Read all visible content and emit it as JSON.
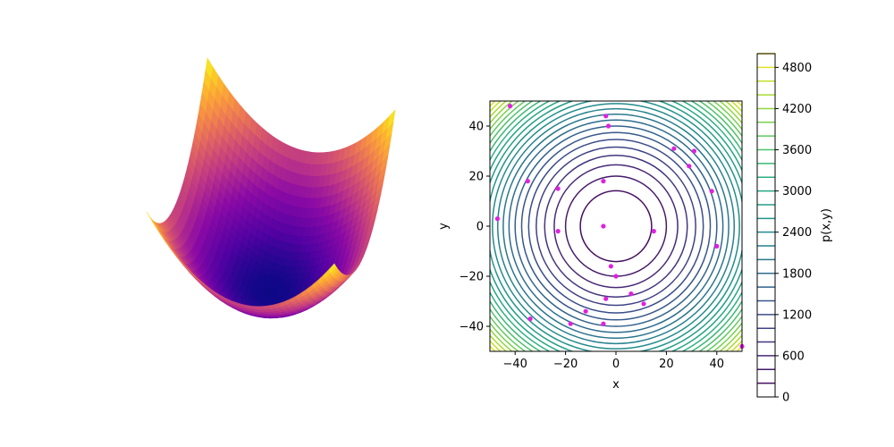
{
  "chart_data": [
    {
      "type": "surface",
      "function": "p(x,y) = x^2 + y^2",
      "x_range": [
        -50,
        50
      ],
      "y_range": [
        -50,
        50
      ],
      "colormap": "plasma",
      "axes_visible": false
    },
    {
      "type": "contour",
      "function": "p(x,y) = x^2 + y^2",
      "xlabel": "x",
      "ylabel": "y",
      "xlim": [
        -50,
        50
      ],
      "ylim": [
        -50,
        50
      ],
      "x_ticks": [
        -40,
        -20,
        0,
        20,
        40
      ],
      "y_ticks": [
        -40,
        -20,
        0,
        20,
        40
      ],
      "x_tick_labels": [
        "−40",
        "−20",
        "0",
        "20",
        "40"
      ],
      "y_tick_labels": [
        "−40",
        "−20",
        "0",
        "20",
        "40"
      ],
      "contour_levels_step": 200,
      "contour_levels_max": 5000,
      "colormap": "viridis",
      "colorbar": {
        "label": "p(x,y)",
        "range": [
          0,
          5000
        ],
        "ticks": [
          0,
          600,
          1200,
          1800,
          2400,
          3000,
          3600,
          4200,
          4800
        ]
      },
      "scatter_color": "#e020e0",
      "scatter_points": [
        [
          -42,
          48
        ],
        [
          -4,
          44
        ],
        [
          -3,
          40
        ],
        [
          23,
          31
        ],
        [
          31,
          30
        ],
        [
          29,
          24
        ],
        [
          -35,
          18
        ],
        [
          -5,
          18
        ],
        [
          -23,
          15
        ],
        [
          38,
          14
        ],
        [
          -47,
          3
        ],
        [
          -23,
          -2
        ],
        [
          -5,
          0
        ],
        [
          15,
          -2
        ],
        [
          40,
          -8
        ],
        [
          -2,
          -16
        ],
        [
          0,
          -20
        ],
        [
          -4,
          -29
        ],
        [
          6,
          -27
        ],
        [
          11,
          -31
        ],
        [
          -12,
          -34
        ],
        [
          -34,
          -37
        ],
        [
          -18,
          -39
        ],
        [
          -5,
          -39
        ],
        [
          50,
          -48
        ]
      ]
    }
  ]
}
